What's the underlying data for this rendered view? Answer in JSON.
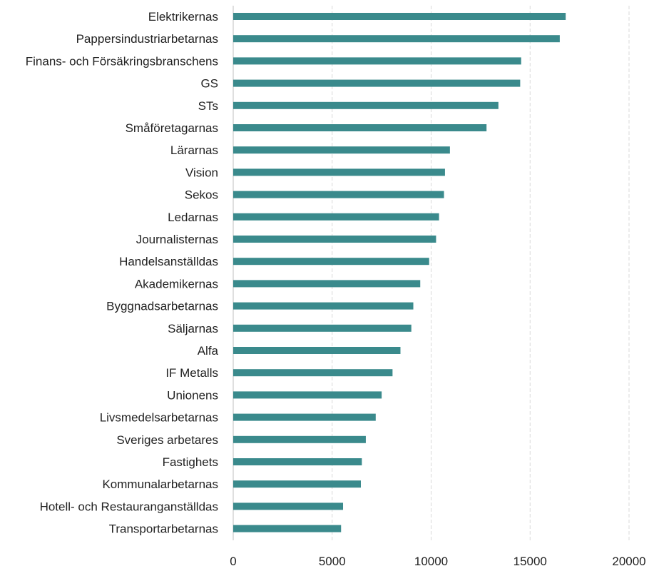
{
  "chart_data": {
    "type": "bar",
    "orientation": "horizontal",
    "categories": [
      "Elektrikernas",
      "Pappersindustriarbetarnas",
      "Finans- och Försäkringsbranschens",
      "GS",
      "STs",
      "Småföretagarnas",
      "Lärarnas",
      "Vision",
      "Sekos",
      "Ledarnas",
      "Journalisternas",
      "Handelsanställdas",
      "Akademikernas",
      "Byggnadsarbetarnas",
      "Säljarnas",
      "Alfa",
      "IF Metalls",
      "Unionens",
      "Livsmedelsarbetarnas",
      "Sveriges arbetares",
      "Fastighets",
      "Kommunalarbetarnas",
      "Hotell- och Restauranganställdas",
      "Transportarbetarnas"
    ],
    "values": [
      16800,
      16500,
      14550,
      14500,
      13400,
      12800,
      10950,
      10700,
      10650,
      10400,
      10250,
      9900,
      9450,
      9100,
      9000,
      8450,
      8050,
      7500,
      7200,
      6700,
      6500,
      6450,
      5550,
      5450
    ],
    "title": "",
    "xlabel": "",
    "ylabel": "",
    "xlim": [
      0,
      20000
    ],
    "xticks": [
      0,
      5000,
      10000,
      15000,
      20000
    ],
    "grid": true,
    "legend": "none",
    "bar_color": "#3a8a8c"
  }
}
